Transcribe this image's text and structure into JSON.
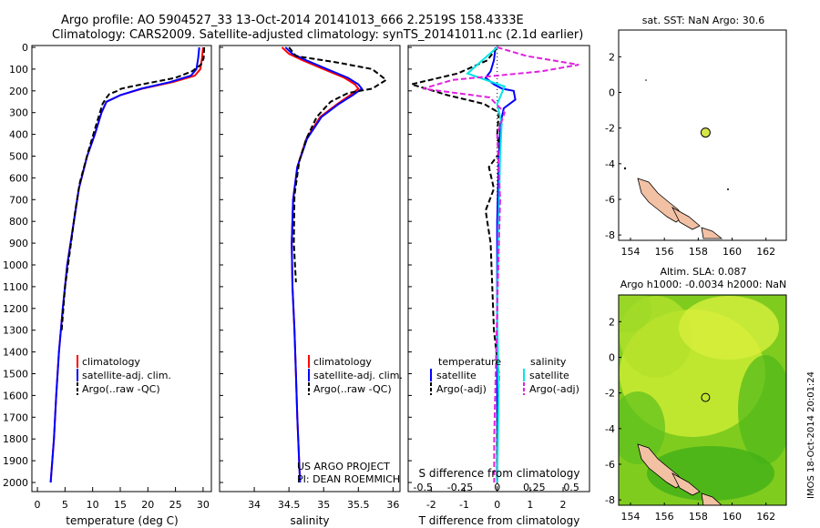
{
  "header": {
    "line1": "Argo profile: AO 5904527_33 13-Oct-2014 20141013_666 2.2519S 158.4333E",
    "line2": "Climatology: CARS2009. Satellite-adjusted climatology: synTS_20141011.nc (2.1d earlier)"
  },
  "project": {
    "line1": "US ARGO PROJECT",
    "line2": "PI: DEAN ROEMMICH"
  },
  "stamp": "IMOS 18-Oct-2014 20:01:24",
  "colors": {
    "clim": "#ff0000",
    "sat": "#0000ff",
    "argo": "#000000",
    "sat_s": "#00e5e5",
    "argo_s": "#e020e0",
    "land": "#f2c1a4",
    "marker": "#d6e64a"
  },
  "chart_data": [
    {
      "type": "line",
      "xlabel": "temperature (deg C)",
      "ylim": [
        0,
        2050
      ],
      "xlim": [
        -1,
        31.5
      ],
      "xticks": [
        0,
        5,
        10,
        15,
        20,
        25,
        30
      ],
      "yticks": [
        0,
        100,
        200,
        300,
        400,
        500,
        600,
        700,
        800,
        900,
        1000,
        1100,
        1200,
        1300,
        1400,
        1500,
        1600,
        1700,
        1800,
        1900,
        2000
      ],
      "legend": [
        "climatology",
        "satellite-adj. clim.",
        "Argo(..raw -QC)"
      ],
      "series": [
        {
          "role": "climatology",
          "x": [
            30.0,
            29.8,
            29.5,
            28.5,
            24.5,
            19.0,
            15.0,
            12.5,
            11.6,
            10.4,
            9.0,
            7.5,
            6.6,
            5.4,
            4.6,
            3.9,
            3.4,
            3.0,
            2.7,
            2.4
          ],
          "y": [
            0,
            50,
            100,
            130,
            160,
            190,
            220,
            250,
            300,
            400,
            500,
            650,
            800,
            1000,
            1200,
            1400,
            1600,
            1800,
            1900,
            2000
          ]
        },
        {
          "role": "satellite",
          "x": [
            29.3,
            29.1,
            28.8,
            27.8,
            24.0,
            18.8,
            15.0,
            12.5,
            11.6,
            10.4,
            9.0,
            7.5,
            6.6,
            5.4,
            4.6,
            3.9,
            3.4,
            3.0,
            2.7,
            2.4
          ],
          "y": [
            0,
            50,
            100,
            130,
            160,
            190,
            220,
            250,
            300,
            400,
            500,
            650,
            800,
            1000,
            1200,
            1400,
            1600,
            1800,
            1900,
            2000
          ]
        },
        {
          "role": "argo",
          "x": [
            30.2,
            30.1,
            29.6,
            28.0,
            25.0,
            21.0,
            17.0,
            15.2,
            14.5,
            13.0,
            12.4,
            11.8,
            10.6,
            9.2,
            7.7,
            6.8,
            6.2,
            5.0,
            4.4
          ],
          "y": [
            0,
            50,
            80,
            110,
            140,
            160,
            180,
            190,
            200,
            215,
            235,
            260,
            360,
            480,
            620,
            760,
            880,
            1100,
            1300
          ]
        }
      ]
    },
    {
      "type": "line",
      "xlabel": "salinity",
      "ylim": [
        0,
        2050
      ],
      "xlim": [
        33.5,
        36.1
      ],
      "xticks": [
        34,
        34.5,
        35,
        35.5,
        36
      ],
      "legend": [
        "climatology",
        "satellite-adj. clim.",
        "Argo(..raw -QC)"
      ],
      "series": [
        {
          "role": "climatology",
          "x": [
            34.4,
            34.5,
            34.7,
            35.0,
            35.3,
            35.45,
            35.5,
            35.38,
            35.2,
            34.95,
            34.75,
            34.62,
            34.56,
            34.54,
            34.55,
            34.58,
            34.6,
            34.62,
            34.64,
            34.66
          ],
          "y": [
            0,
            30,
            60,
            100,
            140,
            170,
            190,
            220,
            260,
            320,
            420,
            550,
            700,
            900,
            1100,
            1300,
            1500,
            1700,
            1850,
            2000
          ]
        },
        {
          "role": "satellite",
          "x": [
            34.45,
            34.55,
            34.75,
            35.05,
            35.35,
            35.5,
            35.55,
            35.42,
            35.22,
            34.97,
            34.76,
            34.62,
            34.56,
            34.54,
            34.55,
            34.58,
            34.6,
            34.62,
            34.64,
            34.66
          ],
          "y": [
            0,
            30,
            60,
            100,
            140,
            170,
            190,
            220,
            260,
            320,
            420,
            550,
            700,
            900,
            1100,
            1300,
            1500,
            1700,
            1850,
            2000
          ]
        },
        {
          "role": "argo",
          "x": [
            34.5,
            34.6,
            35.2,
            35.7,
            35.9,
            35.7,
            35.35,
            35.1,
            34.9,
            34.75,
            34.65,
            34.58,
            34.57,
            34.6
          ],
          "y": [
            0,
            40,
            70,
            100,
            150,
            190,
            210,
            250,
            320,
            420,
            520,
            680,
            900,
            1080
          ]
        }
      ]
    },
    {
      "type": "line",
      "xlabel": "T difference from climatology",
      "x2label": "S difference from climatology",
      "ylim": [
        0,
        2050
      ],
      "xlim": [
        -2.7,
        2.8
      ],
      "xticks": [
        -2,
        -1,
        0,
        1,
        2
      ],
      "x2ticks": [
        -0.5,
        -0.25,
        0,
        0.25,
        0.5
      ],
      "legend_t": {
        "heading": "temperature",
        "items": [
          "satellite",
          "Argo(-adj)"
        ]
      },
      "legend_s": {
        "heading": "salinity",
        "items": [
          "satellite",
          "Argo(-adj)"
        ]
      },
      "series": [
        {
          "role": "t_satellite",
          "x": [
            -0.05,
            -0.1,
            -0.2,
            -0.35,
            -0.1,
            0.15,
            0.5,
            0.55,
            0.2,
            0.1,
            0.05,
            0.0,
            0.0,
            0.0,
            0.0,
            0.0
          ],
          "y": [
            0,
            60,
            110,
            140,
            170,
            190,
            200,
            240,
            280,
            350,
            500,
            800,
            1100,
            1400,
            1700,
            2000
          ]
        },
        {
          "role": "t_argo",
          "x": [
            0.0,
            -0.3,
            -1.2,
            -2.6,
            -1.5,
            -0.4,
            0.05,
            0.0,
            0.1,
            -0.25,
            -0.1,
            -0.35,
            -0.2,
            -0.15,
            -0.1,
            0.05,
            0.0,
            0.0
          ],
          "y": [
            0,
            60,
            120,
            170,
            220,
            260,
            300,
            400,
            480,
            550,
            650,
            750,
            900,
            1100,
            1300,
            1500,
            1800,
            2000
          ]
        },
        {
          "role": "s_satellite",
          "x": [
            0.0,
            -0.1,
            -0.2,
            0.05,
            0.0,
            0.03,
            0.02,
            0.01,
            0.0,
            0.01,
            0.0
          ],
          "y": [
            0,
            60,
            120,
            180,
            260,
            350,
            500,
            800,
            1200,
            1600,
            2000
          ]
        },
        {
          "role": "s_argo",
          "x": [
            0.0,
            0.2,
            0.55,
            0.3,
            -0.3,
            -0.5,
            -0.05,
            0.05,
            0.0,
            0.02,
            0.0,
            -0.02,
            -0.02
          ],
          "y": [
            0,
            40,
            80,
            110,
            150,
            190,
            230,
            300,
            400,
            700,
            1200,
            1800,
            2000
          ]
        }
      ]
    },
    {
      "type": "map",
      "title": "sat. SST: NaN Argo: 30.6",
      "xlim": [
        153.3,
        163.2
      ],
      "ylim": [
        -8.3,
        3.5
      ],
      "xticks": [
        154,
        156,
        158,
        160,
        162
      ],
      "yticks": [
        2,
        0,
        -2,
        -4,
        -6,
        -8
      ],
      "argo_lon": 158.4333,
      "argo_lat": -2.2519
    },
    {
      "type": "map",
      "title1": "Altim. SLA: 0.087",
      "title2": "Argo h1000: -0.0034 h2000: NaN",
      "xlim": [
        153.3,
        163.2
      ],
      "ylim": [
        -8.3,
        3.5
      ],
      "xticks": [
        154,
        156,
        158,
        160,
        162
      ],
      "yticks": [
        2,
        0,
        -2,
        -4,
        -6,
        -8
      ],
      "argo_lon": 158.4333,
      "argo_lat": -2.2519
    }
  ]
}
